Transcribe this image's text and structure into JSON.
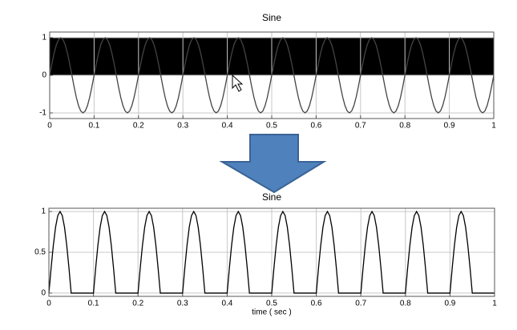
{
  "chart_data": [
    {
      "type": "line",
      "title": "Sine",
      "x": [
        0,
        0.005,
        0.01,
        0.015,
        0.02,
        0.025,
        0.03,
        0.035,
        0.04,
        0.045,
        0.05,
        0.055,
        0.06,
        0.065,
        0.07,
        0.075,
        0.08,
        0.085,
        0.09,
        0.095,
        0.1,
        0.105,
        0.11,
        0.115,
        0.12,
        0.125,
        0.13,
        0.135,
        0.14,
        0.145,
        0.15,
        0.155,
        0.16,
        0.165,
        0.17,
        0.175,
        0.18,
        0.185,
        0.19,
        0.195,
        0.2,
        0.205,
        0.21,
        0.215,
        0.22,
        0.225,
        0.23,
        0.235,
        0.24,
        0.245,
        0.25,
        0.255,
        0.26,
        0.265,
        0.27,
        0.275,
        0.28,
        0.285,
        0.29,
        0.295,
        0.3,
        0.305,
        0.31,
        0.315,
        0.32,
        0.325,
        0.33,
        0.335,
        0.34,
        0.345,
        0.35,
        0.355,
        0.36,
        0.365,
        0.37,
        0.375,
        0.38,
        0.385,
        0.39,
        0.395,
        0.4,
        0.405,
        0.41,
        0.415,
        0.42,
        0.425,
        0.43,
        0.435,
        0.44,
        0.445,
        0.45,
        0.455,
        0.46,
        0.465,
        0.47,
        0.475,
        0.48,
        0.485,
        0.49,
        0.495,
        0.5,
        0.505,
        0.51,
        0.515,
        0.52,
        0.525,
        0.53,
        0.535,
        0.54,
        0.545,
        0.55,
        0.555,
        0.56,
        0.565,
        0.57,
        0.575,
        0.58,
        0.585,
        0.59,
        0.595,
        0.6,
        0.605,
        0.61,
        0.615,
        0.62,
        0.625,
        0.63,
        0.635,
        0.64,
        0.645,
        0.65,
        0.655,
        0.66,
        0.665,
        0.67,
        0.675,
        0.68,
        0.685,
        0.69,
        0.695,
        0.7,
        0.705,
        0.71,
        0.715,
        0.72,
        0.725,
        0.73,
        0.735,
        0.74,
        0.745,
        0.75,
        0.755,
        0.76,
        0.765,
        0.77,
        0.775,
        0.78,
        0.785,
        0.79,
        0.795,
        0.8,
        0.805,
        0.81,
        0.815,
        0.82,
        0.825,
        0.83,
        0.835,
        0.84,
        0.845,
        0.85,
        0.855,
        0.86,
        0.865,
        0.87,
        0.875,
        0.88,
        0.885,
        0.89,
        0.895,
        0.9,
        0.905,
        0.91,
        0.915,
        0.92,
        0.925,
        0.93,
        0.935,
        0.94,
        0.945,
        0.95,
        0.955,
        0.96,
        0.965,
        0.97,
        0.975,
        0.98,
        0.985,
        0.99,
        0.995,
        1
      ],
      "values": [
        0,
        0.309,
        0.588,
        0.809,
        0.951,
        1,
        0.951,
        0.809,
        0.588,
        0.309,
        0,
        -0.309,
        -0.588,
        -0.809,
        -0.951,
        -1,
        -0.951,
        -0.809,
        -0.588,
        -0.309,
        0,
        0.309,
        0.588,
        0.809,
        0.951,
        1,
        0.951,
        0.809,
        0.588,
        0.309,
        0,
        -0.309,
        -0.588,
        -0.809,
        -0.951,
        -1,
        -0.951,
        -0.809,
        -0.588,
        -0.309,
        0,
        0.309,
        0.588,
        0.809,
        0.951,
        1,
        0.951,
        0.809,
        0.588,
        0.309,
        0,
        -0.309,
        -0.588,
        -0.809,
        -0.951,
        -1,
        -0.951,
        -0.809,
        -0.588,
        -0.309,
        0,
        0.309,
        0.588,
        0.809,
        0.951,
        1,
        0.951,
        0.809,
        0.588,
        0.309,
        0,
        -0.309,
        -0.588,
        -0.809,
        -0.951,
        -1,
        -0.951,
        -0.809,
        -0.588,
        -0.309,
        0,
        0.309,
        0.588,
        0.809,
        0.951,
        1,
        0.951,
        0.809,
        0.588,
        0.309,
        0,
        -0.309,
        -0.588,
        -0.809,
        -0.951,
        -1,
        -0.951,
        -0.809,
        -0.588,
        -0.309,
        0,
        0.309,
        0.588,
        0.809,
        0.951,
        1,
        0.951,
        0.809,
        0.588,
        0.309,
        0,
        -0.309,
        -0.588,
        -0.809,
        -0.951,
        -1,
        -0.951,
        -0.809,
        -0.588,
        -0.309,
        0,
        0.309,
        0.588,
        0.809,
        0.951,
        1,
        0.951,
        0.809,
        0.588,
        0.309,
        0,
        -0.309,
        -0.588,
        -0.809,
        -0.951,
        -1,
        -0.951,
        -0.809,
        -0.588,
        -0.309,
        0,
        0.309,
        0.588,
        0.809,
        0.951,
        1,
        0.951,
        0.809,
        0.588,
        0.309,
        0,
        -0.309,
        -0.588,
        -0.809,
        -0.951,
        -1,
        -0.951,
        -0.809,
        -0.588,
        -0.309,
        0,
        0.309,
        0.588,
        0.809,
        0.951,
        1,
        0.951,
        0.809,
        0.588,
        0.309,
        0,
        -0.309,
        -0.588,
        -0.809,
        -0.951,
        -1,
        -0.951,
        -0.809,
        -0.588,
        -0.309,
        0,
        0.309,
        0.588,
        0.809,
        0.951,
        1,
        0.951,
        0.809,
        0.588,
        0.309,
        0,
        -0.309,
        -0.588,
        -0.809,
        -0.951,
        -1,
        -0.951,
        -0.809,
        -0.588,
        -0.309,
        0
      ],
      "color": "#444444",
      "fill_color": "#000000",
      "xlim": [
        0,
        1
      ],
      "xticks": [
        0,
        0.1,
        0.2,
        0.3,
        0.4,
        0.5,
        0.6,
        0.7,
        0.8,
        0.9,
        1
      ],
      "ylim": [
        -1.15,
        1.15
      ],
      "yticks": [
        -1,
        0,
        1
      ],
      "grid": true
    },
    {
      "type": "line",
      "title": "Sine",
      "xlabel": "time ( sec )",
      "x": [
        0,
        0.005,
        0.01,
        0.015,
        0.02,
        0.025,
        0.03,
        0.035,
        0.04,
        0.045,
        0.05,
        0.055,
        0.06,
        0.065,
        0.07,
        0.075,
        0.08,
        0.085,
        0.09,
        0.095,
        0.1,
        0.105,
        0.11,
        0.115,
        0.12,
        0.125,
        0.13,
        0.135,
        0.14,
        0.145,
        0.15,
        0.155,
        0.16,
        0.165,
        0.17,
        0.175,
        0.18,
        0.185,
        0.19,
        0.195,
        0.2,
        0.205,
        0.21,
        0.215,
        0.22,
        0.225,
        0.23,
        0.235,
        0.24,
        0.245,
        0.25,
        0.255,
        0.26,
        0.265,
        0.27,
        0.275,
        0.28,
        0.285,
        0.29,
        0.295,
        0.3,
        0.305,
        0.31,
        0.315,
        0.32,
        0.325,
        0.33,
        0.335,
        0.34,
        0.345,
        0.35,
        0.355,
        0.36,
        0.365,
        0.37,
        0.375,
        0.38,
        0.385,
        0.39,
        0.395,
        0.4,
        0.405,
        0.41,
        0.415,
        0.42,
        0.425,
        0.43,
        0.435,
        0.44,
        0.445,
        0.45,
        0.455,
        0.46,
        0.465,
        0.47,
        0.475,
        0.48,
        0.485,
        0.49,
        0.495,
        0.5,
        0.505,
        0.51,
        0.515,
        0.52,
        0.525,
        0.53,
        0.535,
        0.54,
        0.545,
        0.55,
        0.555,
        0.56,
        0.565,
        0.57,
        0.575,
        0.58,
        0.585,
        0.59,
        0.595,
        0.6,
        0.605,
        0.61,
        0.615,
        0.62,
        0.625,
        0.63,
        0.635,
        0.64,
        0.645,
        0.65,
        0.655,
        0.66,
        0.665,
        0.67,
        0.675,
        0.68,
        0.685,
        0.69,
        0.695,
        0.7,
        0.705,
        0.71,
        0.715,
        0.72,
        0.725,
        0.73,
        0.735,
        0.74,
        0.745,
        0.75,
        0.755,
        0.76,
        0.765,
        0.77,
        0.775,
        0.78,
        0.785,
        0.79,
        0.795,
        0.8,
        0.805,
        0.81,
        0.815,
        0.82,
        0.825,
        0.83,
        0.835,
        0.84,
        0.845,
        0.85,
        0.855,
        0.86,
        0.865,
        0.87,
        0.875,
        0.88,
        0.885,
        0.89,
        0.895,
        0.9,
        0.905,
        0.91,
        0.915,
        0.92,
        0.925,
        0.93,
        0.935,
        0.94,
        0.945,
        0.95,
        0.955,
        0.96,
        0.965,
        0.97,
        0.975,
        0.98,
        0.985,
        0.99,
        0.995,
        1
      ],
      "values": [
        0,
        0.309,
        0.588,
        0.809,
        0.951,
        1,
        0.951,
        0.809,
        0.588,
        0.309,
        0,
        0,
        0,
        0,
        0,
        0,
        0,
        0,
        0,
        0,
        0,
        0.309,
        0.588,
        0.809,
        0.951,
        1,
        0.951,
        0.809,
        0.588,
        0.309,
        0,
        0,
        0,
        0,
        0,
        0,
        0,
        0,
        0,
        0,
        0,
        0.309,
        0.588,
        0.809,
        0.951,
        1,
        0.951,
        0.809,
        0.588,
        0.309,
        0,
        0,
        0,
        0,
        0,
        0,
        0,
        0,
        0,
        0,
        0,
        0.309,
        0.588,
        0.809,
        0.951,
        1,
        0.951,
        0.809,
        0.588,
        0.309,
        0,
        0,
        0,
        0,
        0,
        0,
        0,
        0,
        0,
        0,
        0,
        0.309,
        0.588,
        0.809,
        0.951,
        1,
        0.951,
        0.809,
        0.588,
        0.309,
        0,
        0,
        0,
        0,
        0,
        0,
        0,
        0,
        0,
        0,
        0,
        0.309,
        0.588,
        0.809,
        0.951,
        1,
        0.951,
        0.809,
        0.588,
        0.309,
        0,
        0,
        0,
        0,
        0,
        0,
        0,
        0,
        0,
        0,
        0,
        0.309,
        0.588,
        0.809,
        0.951,
        1,
        0.951,
        0.809,
        0.588,
        0.309,
        0,
        0,
        0,
        0,
        0,
        0,
        0,
        0,
        0,
        0,
        0,
        0.309,
        0.588,
        0.809,
        0.951,
        1,
        0.951,
        0.809,
        0.588,
        0.309,
        0,
        0,
        0,
        0,
        0,
        0,
        0,
        0,
        0,
        0,
        0,
        0.309,
        0.588,
        0.809,
        0.951,
        1,
        0.951,
        0.809,
        0.588,
        0.309,
        0,
        0,
        0,
        0,
        0,
        0,
        0,
        0,
        0,
        0,
        0,
        0.309,
        0.588,
        0.809,
        0.951,
        1,
        0.951,
        0.809,
        0.588,
        0.309,
        0,
        0,
        0,
        0,
        0,
        0,
        0,
        0,
        0,
        0,
        0
      ],
      "color": "#000000",
      "xlim": [
        0,
        1
      ],
      "xticks": [
        0,
        0.1,
        0.2,
        0.3,
        0.4,
        0.5,
        0.6,
        0.7,
        0.8,
        0.9,
        1
      ],
      "ylim": [
        -0.04,
        1.04
      ],
      "yticks": [
        0,
        0.5,
        1
      ],
      "grid": true
    }
  ]
}
